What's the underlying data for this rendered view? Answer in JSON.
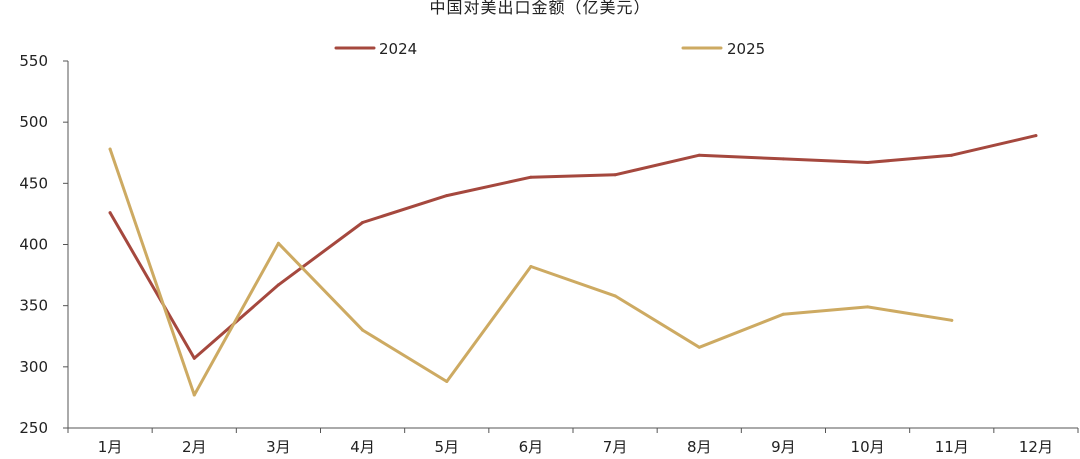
{
  "chart_data": {
    "type": "line",
    "title": "中国对美出口金额（亿美元）",
    "xlabel": "",
    "ylabel": "",
    "categories": [
      "1月",
      "2月",
      "3月",
      "4月",
      "5月",
      "6月",
      "7月",
      "8月",
      "9月",
      "10月",
      "11月",
      "12月"
    ],
    "ylim": [
      250,
      550
    ],
    "yticks": [
      250,
      300,
      350,
      400,
      450,
      500,
      550
    ],
    "grid": false,
    "legend_position": "top",
    "series": [
      {
        "name": "2024",
        "color": "#A5483E",
        "values": [
          426,
          307,
          367,
          418,
          440,
          455,
          457,
          473,
          470,
          467,
          473,
          489
        ]
      },
      {
        "name": "2025",
        "color": "#CDAA62",
        "values": [
          478,
          277,
          401,
          330,
          288,
          382,
          358,
          316,
          343,
          349,
          338,
          null
        ]
      }
    ]
  }
}
